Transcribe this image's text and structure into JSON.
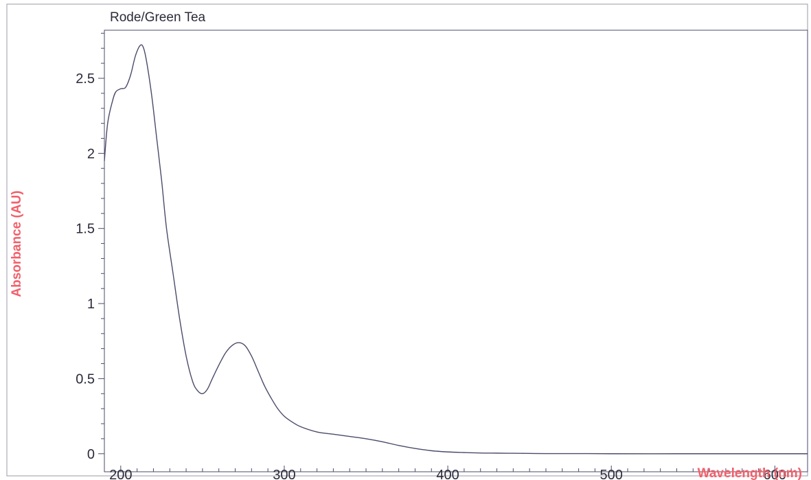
{
  "chart_data": {
    "type": "line",
    "title": "Rode/Green Tea",
    "xlabel": "Wavelength (nm)",
    "ylabel": "Absorbance (AU)",
    "xlim": [
      190,
      620
    ],
    "ylim": [
      -0.12,
      2.82
    ],
    "x_ticks": [
      200,
      300,
      400,
      500,
      600
    ],
    "y_ticks": [
      0,
      0.5,
      1,
      1.5,
      2,
      2.5
    ],
    "x_tick_labels": [
      "200",
      "300",
      "400",
      "500",
      "600"
    ],
    "y_tick_labels": [
      "0",
      "0.5",
      "1",
      "1.5",
      "2",
      "2.5"
    ],
    "grid": false,
    "legend": "none",
    "colors": {
      "line": "#4a4a68",
      "axis": "#4a4a68",
      "label": "#f2606a",
      "text": "#2b2b3a"
    },
    "series": [
      {
        "x": [
          190,
          192,
          195,
          197,
          200,
          203,
          206,
          209,
          212,
          214,
          216,
          219,
          222,
          225,
          228,
          232,
          236,
          240,
          244,
          247,
          250,
          253,
          256,
          260,
          264,
          268,
          272,
          276,
          280,
          284,
          288,
          292,
          296,
          300,
          305,
          310,
          320,
          330,
          340,
          350,
          360,
          370,
          380,
          390,
          400,
          410,
          420,
          430,
          440,
          450,
          460,
          480,
          500,
          540,
          580,
          620
        ],
        "y": [
          1.95,
          2.2,
          2.35,
          2.41,
          2.43,
          2.44,
          2.52,
          2.65,
          2.72,
          2.7,
          2.6,
          2.38,
          2.1,
          1.82,
          1.5,
          1.2,
          0.9,
          0.65,
          0.48,
          0.42,
          0.4,
          0.43,
          0.5,
          0.59,
          0.67,
          0.72,
          0.74,
          0.72,
          0.65,
          0.55,
          0.45,
          0.37,
          0.3,
          0.25,
          0.21,
          0.18,
          0.145,
          0.13,
          0.115,
          0.1,
          0.08,
          0.055,
          0.035,
          0.02,
          0.012,
          0.008,
          0.005,
          0.004,
          0.003,
          0.002,
          0.001,
          0.001,
          0,
          0,
          0,
          0
        ]
      }
    ]
  }
}
